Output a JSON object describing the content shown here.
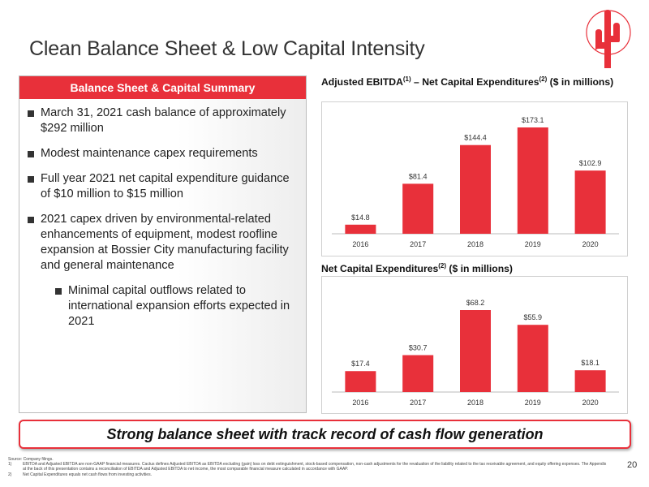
{
  "page": {
    "title": "Clean Balance Sheet & Low Capital Intensity",
    "page_number": "20",
    "banner": "Strong balance sheet with track record of cash flow generation"
  },
  "panel": {
    "header": "Balance Sheet & Capital Summary",
    "bullets": [
      "March 31, 2021 cash balance of approximately $292 million",
      "Modest maintenance capex requirements",
      "Full year 2021 net capital expenditure guidance of $10 million to $15 million",
      "2021 capex driven by environmental-related enhancements of equipment, modest roofline expansion at Bossier City manufacturing facility and general maintenance"
    ],
    "sub_bullet": "Minimal capital outflows related to international expansion efforts expected in 2021"
  },
  "chart_titles": {
    "c1_pre": "Adjusted EBITDA",
    "c1_sup1": "(1)",
    "c1_mid": " – Net Capital Expenditures",
    "c1_sup2": "(2)",
    "c1_post": " ($ in millions)",
    "c2_pre": "Net Capital Expenditures",
    "c2_sup": "(2)",
    "c2_post": " ($ in millions)"
  },
  "chart_data": [
    {
      "type": "bar",
      "title": "Adjusted EBITDA(1) – Net Capital Expenditures(2) ($ in millions)",
      "categories": [
        "2016",
        "2017",
        "2018",
        "2019",
        "2020"
      ],
      "values": [
        14.8,
        81.4,
        144.4,
        173.1,
        102.9
      ],
      "labels": [
        "$14.8",
        "$81.4",
        "$144.4",
        "$173.1",
        "$102.9"
      ],
      "ylim": [
        0,
        173.1
      ],
      "color": "#e8303a",
      "grid": false
    },
    {
      "type": "bar",
      "title": "Net Capital Expenditures(2) ($ in millions)",
      "categories": [
        "2016",
        "2017",
        "2018",
        "2019",
        "2020"
      ],
      "values": [
        17.4,
        30.7,
        68.2,
        55.9,
        18.1
      ],
      "labels": [
        "$17.4",
        "$30.7",
        "$68.2",
        "$55.9",
        "$18.1"
      ],
      "ylim": [
        0,
        68.2
      ],
      "color": "#e8303a",
      "grid": false
    }
  ],
  "footnotes": {
    "source": "Source: Company filings.",
    "n1_num": "1)",
    "n1": "EBITDA and Adjusted EBITDA are non-GAAP financial measures. Cactus defines Adjusted EBITDA as EBITDA excluding (gain) loss on debt extinguishment, stock-based compensation, non-cash adjustments for the revaluation of the liability related to the tax receivable agreement, and equity offering expenses. The Appendix at the back of this presentation contains a reconciliation of EBITDA and Adjusted EBITDA to net income, the most comparable financial measure calculated in accordance with GAAP.",
    "n2_num": "2)",
    "n2": "Net Capital Expenditures equals net cash flows from investing activities."
  }
}
